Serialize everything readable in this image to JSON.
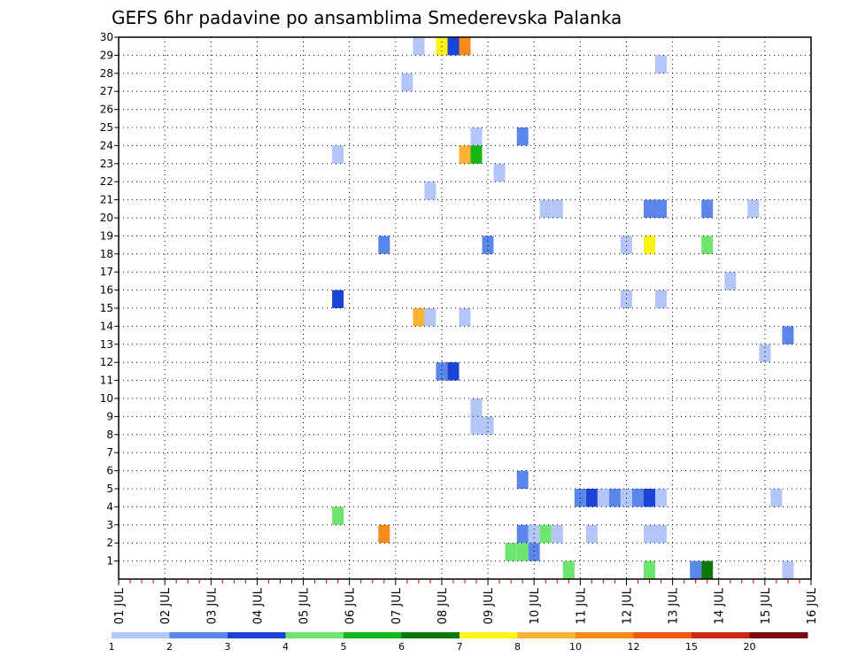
{
  "chart_data": {
    "type": "heatmap",
    "title": "GEFS 6hr padavine po ansamblima Smederevska Palanka",
    "xlabel": "",
    "ylabel": "",
    "x_unit": "day of July (6-hour steps)",
    "x_range": [
      1,
      16
    ],
    "y_range": [
      0,
      30
    ],
    "grid": true,
    "x_tick_labels": [
      "01 JUL",
      "02 JUL",
      "03 JUL",
      "04 JUL",
      "05 JUL",
      "06 JUL",
      "07 JUL",
      "08 JUL",
      "09 JUL",
      "10 JUL",
      "11 JUL",
      "12 JUL",
      "13 JUL",
      "14 JUL",
      "15 JUL",
      "16 JUL"
    ],
    "y_tick_labels": [
      "1",
      "2",
      "3",
      "4",
      "5",
      "6",
      "7",
      "8",
      "9",
      "10",
      "11",
      "12",
      "13",
      "14",
      "15",
      "16",
      "17",
      "18",
      "19",
      "20",
      "21",
      "22",
      "23",
      "24",
      "25",
      "26",
      "27",
      "28",
      "29",
      "30"
    ],
    "colorbar": {
      "labels": [
        "1",
        "2",
        "3",
        "4",
        "5",
        "6",
        "7",
        "8",
        "10",
        "12",
        "15",
        "20"
      ],
      "colors": [
        "#b3c6f7",
        "#5b86ec",
        "#1a44d6",
        "#6ee56e",
        "#14b814",
        "#0b7a0b",
        "#fbf314",
        "#fbb135",
        "#f78a1a",
        "#f05a10",
        "#cc2a14",
        "#7f0c0c"
      ]
    },
    "cells": [
      {
        "x": 7.5,
        "y": 30,
        "c": 0
      },
      {
        "x": 8.0,
        "y": 30,
        "c": 6
      },
      {
        "x": 8.25,
        "y": 30,
        "c": 2
      },
      {
        "x": 8.5,
        "y": 30,
        "c": 8
      },
      {
        "x": 12.75,
        "y": 29,
        "c": 0
      },
      {
        "x": 7.25,
        "y": 28,
        "c": 0
      },
      {
        "x": 8.75,
        "y": 25,
        "c": 0
      },
      {
        "x": 9.75,
        "y": 25,
        "c": 1
      },
      {
        "x": 5.75,
        "y": 24,
        "c": 0
      },
      {
        "x": 8.5,
        "y": 24,
        "c": 7
      },
      {
        "x": 8.75,
        "y": 24,
        "c": 4
      },
      {
        "x": 9.25,
        "y": 23,
        "c": 0
      },
      {
        "x": 7.75,
        "y": 22,
        "c": 0
      },
      {
        "x": 10.25,
        "y": 21,
        "c": 0
      },
      {
        "x": 10.5,
        "y": 21,
        "c": 0
      },
      {
        "x": 12.5,
        "y": 21,
        "c": 1
      },
      {
        "x": 12.75,
        "y": 21,
        "c": 1
      },
      {
        "x": 13.75,
        "y": 21,
        "c": 1
      },
      {
        "x": 14.75,
        "y": 21,
        "c": 0
      },
      {
        "x": 6.75,
        "y": 19,
        "c": 1
      },
      {
        "x": 9.0,
        "y": 19,
        "c": 1
      },
      {
        "x": 12.0,
        "y": 19,
        "c": 0
      },
      {
        "x": 12.5,
        "y": 19,
        "c": 6
      },
      {
        "x": 13.75,
        "y": 19,
        "c": 3
      },
      {
        "x": 14.25,
        "y": 17,
        "c": 0
      },
      {
        "x": 5.75,
        "y": 16,
        "c": 2
      },
      {
        "x": 12.0,
        "y": 16,
        "c": 0
      },
      {
        "x": 12.75,
        "y": 16,
        "c": 0
      },
      {
        "x": 7.5,
        "y": 15,
        "c": 7
      },
      {
        "x": 7.75,
        "y": 15,
        "c": 0
      },
      {
        "x": 8.5,
        "y": 15,
        "c": 0
      },
      {
        "x": 15.5,
        "y": 14,
        "c": 1
      },
      {
        "x": 15.0,
        "y": 13,
        "c": 0
      },
      {
        "x": 8.0,
        "y": 12,
        "c": 1
      },
      {
        "x": 8.25,
        "y": 12,
        "c": 2
      },
      {
        "x": 8.75,
        "y": 10,
        "c": 0
      },
      {
        "x": 8.75,
        "y": 9,
        "c": 0
      },
      {
        "x": 9.0,
        "y": 9,
        "c": 0
      },
      {
        "x": 9.75,
        "y": 6,
        "c": 1
      },
      {
        "x": 11.0,
        "y": 5,
        "c": 1
      },
      {
        "x": 11.25,
        "y": 5,
        "c": 2
      },
      {
        "x": 11.5,
        "y": 5,
        "c": 0
      },
      {
        "x": 11.75,
        "y": 5,
        "c": 1
      },
      {
        "x": 12.0,
        "y": 5,
        "c": 0
      },
      {
        "x": 12.25,
        "y": 5,
        "c": 1
      },
      {
        "x": 12.5,
        "y": 5,
        "c": 2
      },
      {
        "x": 12.75,
        "y": 5,
        "c": 0
      },
      {
        "x": 15.25,
        "y": 5,
        "c": 0
      },
      {
        "x": 5.75,
        "y": 4,
        "c": 3
      },
      {
        "x": 6.75,
        "y": 3,
        "c": 8
      },
      {
        "x": 9.75,
        "y": 3,
        "c": 1
      },
      {
        "x": 10.0,
        "y": 3,
        "c": 0
      },
      {
        "x": 10.25,
        "y": 3,
        "c": 3
      },
      {
        "x": 10.5,
        "y": 3,
        "c": 0
      },
      {
        "x": 11.25,
        "y": 3,
        "c": 0
      },
      {
        "x": 12.5,
        "y": 3,
        "c": 0
      },
      {
        "x": 12.75,
        "y": 3,
        "c": 0
      },
      {
        "x": 9.5,
        "y": 2,
        "c": 3
      },
      {
        "x": 9.75,
        "y": 2,
        "c": 3
      },
      {
        "x": 10.0,
        "y": 2,
        "c": 1
      },
      {
        "x": 10.75,
        "y": 1,
        "c": 3
      },
      {
        "x": 12.5,
        "y": 1,
        "c": 3
      },
      {
        "x": 13.5,
        "y": 1,
        "c": 1
      },
      {
        "x": 13.75,
        "y": 1,
        "c": 5
      },
      {
        "x": 15.5,
        "y": 1,
        "c": 0
      }
    ]
  }
}
